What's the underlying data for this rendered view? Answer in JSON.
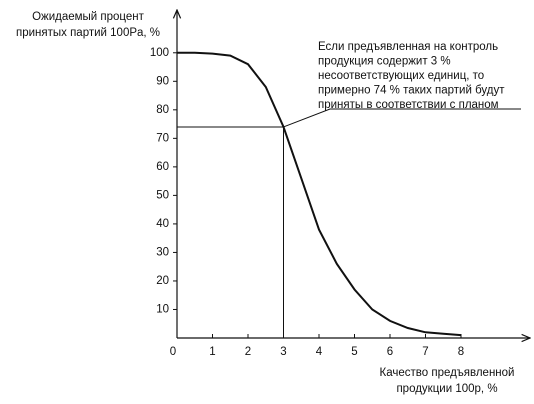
{
  "chart_data": {
    "type": "line",
    "y_label": [
      "Ожидаемый процент",
      "принятых партий 100Pa, %"
    ],
    "x_label": [
      "Качество предъявленной",
      "продукции 100р, %"
    ],
    "annotation": [
      "Если предъявленная на контроль",
      "продукция содержит 3 %",
      "несоответствующих единиц, то",
      "примерно 74 % таких партий будут",
      "приняты в соответствии с планом"
    ],
    "reference_point": {
      "x": 3,
      "y": 74
    },
    "x": [
      0,
      0.5,
      1,
      1.5,
      2,
      2.5,
      3,
      3.5,
      4,
      4.5,
      5,
      5.5,
      6,
      6.5,
      7,
      7.5,
      8
    ],
    "values": [
      100,
      100,
      99.7,
      99,
      96,
      88,
      74,
      56,
      38,
      26,
      17,
      10,
      6,
      3.5,
      2,
      1.5,
      1
    ],
    "color": "#111111",
    "xlim": [
      0,
      10
    ],
    "ylim": [
      0,
      115
    ],
    "xticks": [
      0,
      1,
      2,
      3,
      4,
      5,
      6,
      7,
      8
    ],
    "yticks": [
      10,
      20,
      30,
      40,
      50,
      60,
      70,
      80,
      90,
      100
    ]
  }
}
